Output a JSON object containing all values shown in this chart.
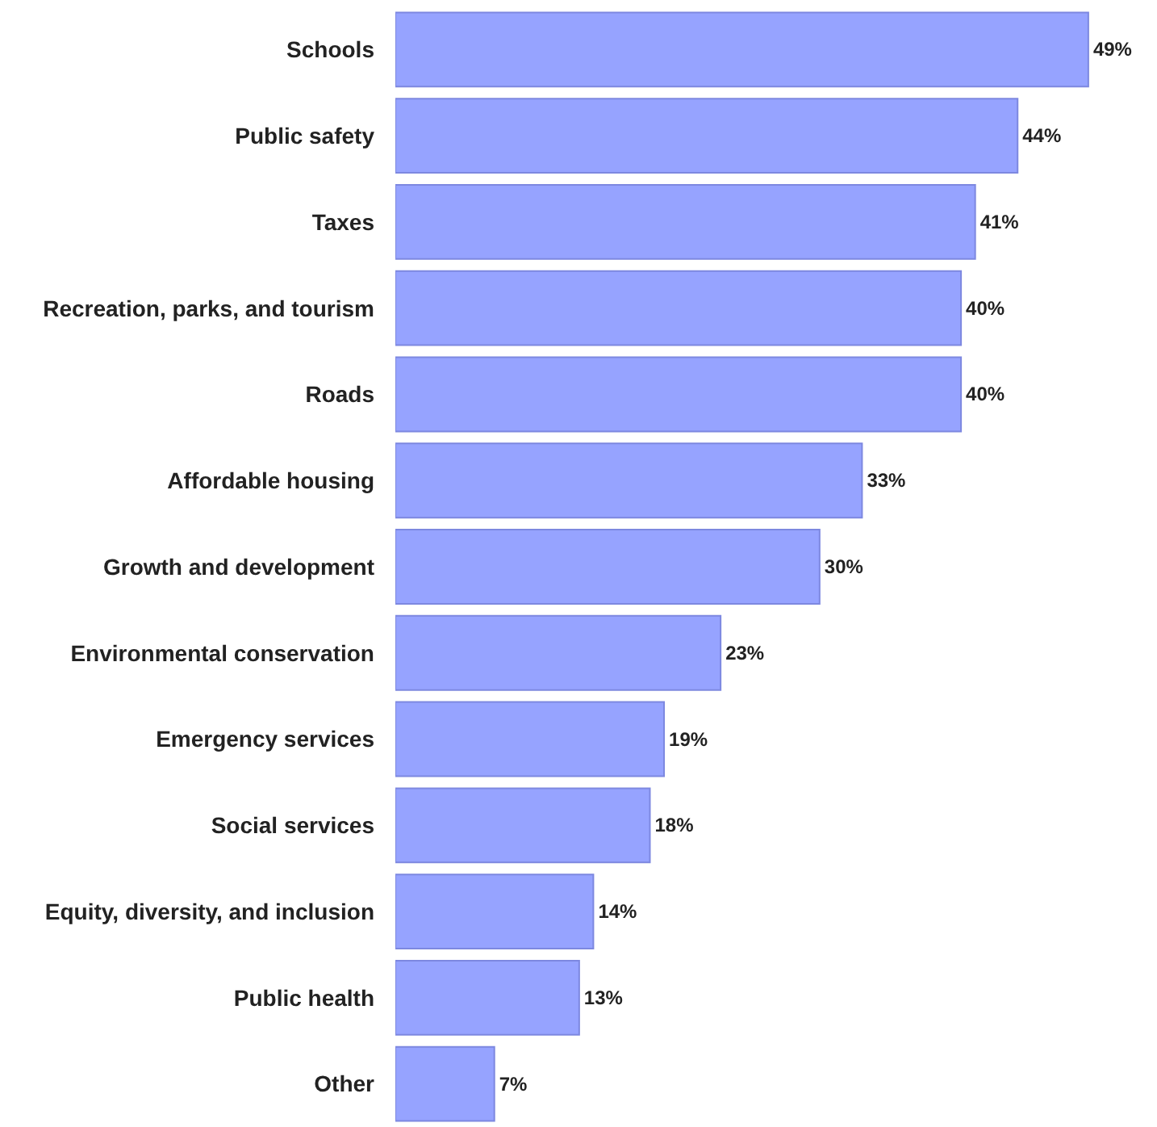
{
  "chart_data": {
    "type": "bar",
    "orientation": "horizontal",
    "categories": [
      "Schools",
      "Public safety",
      "Taxes",
      "Recreation, parks, and tourism",
      "Roads",
      "Affordable housing",
      "Growth and development",
      "Environmental conservation",
      "Emergency services",
      "Social services",
      "Equity, diversity, and inclusion",
      "Public health",
      "Other"
    ],
    "values": [
      49,
      44,
      41,
      40,
      40,
      33,
      30,
      23,
      19,
      18,
      14,
      13,
      7
    ],
    "value_labels": [
      "49%",
      "44%",
      "41%",
      "40%",
      "40%",
      "33%",
      "30%",
      "23%",
      "19%",
      "18%",
      "14%",
      "13%",
      "7%"
    ],
    "color": "#96a3ff",
    "xlim": [
      0,
      53.4
    ]
  }
}
